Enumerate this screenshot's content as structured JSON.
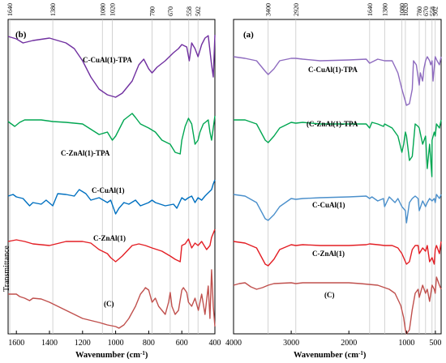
{
  "chart_data": [
    {
      "type": "line",
      "panel": "(b)",
      "xlabel": "Wavenumber (cm-1)",
      "ylabel": "Transmittance",
      "xlim": [
        1650,
        400
      ],
      "x_ticks": [
        1600,
        1400,
        1200,
        1000,
        800,
        600,
        400
      ],
      "x_tick_labels": [
        "1600",
        "1400",
        "1200",
        "1000",
        "800",
        "600",
        "400"
      ],
      "marker_lines": [
        1640,
        1380,
        1080,
        1020,
        780,
        670,
        558,
        502
      ],
      "marker_labels": [
        "1640",
        "1380",
        "1080",
        "1020",
        "780",
        "670",
        "558",
        "502"
      ],
      "grid": false,
      "series": [
        {
          "name": "C-CuAl(1)-TPA",
          "color": "#7030a0",
          "baseline": 45,
          "x": [
            1650,
            1600,
            1560,
            1500,
            1400,
            1300,
            1250,
            1200,
            1150,
            1100,
            1050,
            1000,
            960,
            900,
            860,
            830,
            800,
            780,
            750,
            700,
            650,
            620,
            600,
            570,
            555,
            540,
            520,
            502,
            480,
            460,
            440,
            420,
            410,
            400
          ],
          "y": [
            0,
            3,
            8,
            5,
            2,
            8,
            15,
            30,
            50,
            65,
            72,
            75,
            70,
            55,
            35,
            28,
            40,
            45,
            38,
            30,
            20,
            15,
            10,
            13,
            30,
            8,
            15,
            25,
            10,
            2,
            -1,
            35,
            50,
            -2
          ]
        },
        {
          "name": "C-ZnAl(1)-TPA",
          "color": "#00a651",
          "baseline": 148,
          "x": [
            1650,
            1610,
            1580,
            1550,
            1450,
            1380,
            1300,
            1200,
            1100,
            1050,
            1020,
            1000,
            950,
            900,
            880,
            850,
            800,
            760,
            720,
            670,
            640,
            610,
            600,
            580,
            560,
            540,
            520,
            502,
            490,
            470,
            440,
            430,
            420,
            410,
            400
          ],
          "y": [
            2,
            8,
            3,
            0,
            0,
            2,
            3,
            5,
            18,
            15,
            25,
            20,
            0,
            -8,
            -3,
            5,
            10,
            15,
            25,
            30,
            40,
            42,
            25,
            8,
            -2,
            5,
            30,
            25,
            15,
            5,
            0,
            15,
            25,
            10,
            -5
          ]
        },
        {
          "name": "C-CuAl(1)",
          "color": "#0070c0",
          "baseline": 242,
          "x": [
            1650,
            1620,
            1600,
            1560,
            1520,
            1500,
            1450,
            1420,
            1380,
            1350,
            1300,
            1250,
            1220,
            1180,
            1150,
            1100,
            1050,
            1030,
            1000,
            980,
            950,
            920,
            880,
            850,
            800,
            780,
            760,
            700,
            650,
            630,
            600,
            580,
            560,
            540,
            520,
            502,
            480,
            460,
            440,
            420,
            410,
            400
          ],
          "y": [
            0,
            -2,
            1,
            3,
            12,
            8,
            10,
            5,
            12,
            -3,
            -2,
            0,
            -8,
            -3,
            5,
            2,
            8,
            5,
            22,
            15,
            8,
            10,
            5,
            12,
            8,
            5,
            8,
            12,
            10,
            15,
            2,
            5,
            2,
            0,
            8,
            2,
            5,
            0,
            -4,
            -8,
            -15,
            -20
          ]
        },
        {
          "name": "C-ZnAl(1)",
          "color": "#e31e24",
          "baseline": 298,
          "x": [
            1650,
            1600,
            1550,
            1500,
            1400,
            1300,
            1200,
            1150,
            1100,
            1050,
            1030,
            1000,
            960,
            900,
            860,
            820,
            780,
            720,
            670,
            640,
            610,
            600,
            580,
            560,
            540,
            520,
            502,
            480,
            450,
            430,
            420,
            410,
            400
          ],
          "y": [
            0,
            -2,
            0,
            3,
            5,
            0,
            0,
            2,
            10,
            15,
            20,
            25,
            18,
            5,
            3,
            5,
            8,
            12,
            18,
            22,
            25,
            5,
            3,
            -3,
            8,
            2,
            5,
            0,
            10,
            5,
            -5,
            -10,
            -15
          ]
        },
        {
          "name": "(C)",
          "color": "#c0504d",
          "baseline": 363,
          "x": [
            1650,
            1600,
            1580,
            1550,
            1520,
            1500,
            1450,
            1400,
            1350,
            1300,
            1200,
            1100,
            1050,
            1000,
            980,
            950,
            920,
            880,
            850,
            830,
            820,
            800,
            780,
            760,
            740,
            720,
            700,
            680,
            670,
            660,
            640,
            620,
            600,
            590,
            570,
            560,
            540,
            520,
            500,
            480,
            460,
            440,
            430,
            420,
            410,
            400
          ],
          "y": [
            0,
            0,
            3,
            5,
            8,
            5,
            6,
            10,
            15,
            20,
            30,
            35,
            38,
            40,
            42,
            38,
            30,
            15,
            0,
            -5,
            -8,
            -5,
            10,
            5,
            15,
            20,
            25,
            10,
            -2,
            15,
            25,
            20,
            -5,
            -8,
            -2,
            10,
            15,
            5,
            20,
            0,
            25,
            -10,
            30,
            -30,
            15,
            40
          ]
        }
      ]
    },
    {
      "type": "line",
      "panel": "(a)",
      "xlabel": "Wavenumber (cm-1)",
      "ylabel": "",
      "xlim": [
        4000,
        400
      ],
      "x_ticks": [
        4000,
        3000,
        2000,
        1000,
        500
      ],
      "x_tick_labels": [
        "4000",
        "3000",
        "2000",
        "1000",
        "500"
      ],
      "marker_lines": [
        3400,
        2920,
        1640,
        1380,
        1080,
        1020,
        780,
        670,
        558,
        502
      ],
      "marker_labels": [
        "3400",
        "2920",
        "1640",
        "1380",
        "1080",
        "1020",
        "780",
        "670",
        "558",
        "502"
      ],
      "grid": false,
      "series": [
        {
          "name": "C-CuAl(1)-TPA",
          "color": "#8e6bbf",
          "baseline": 70,
          "x": [
            4000,
            3800,
            3600,
            3450,
            3400,
            3300,
            3200,
            3000,
            2920,
            2800,
            2500,
            2000,
            1700,
            1640,
            1500,
            1380,
            1250,
            1150,
            1080,
            1020,
            1000,
            950,
            900,
            880,
            830,
            780,
            760,
            720,
            700,
            670,
            640,
            600,
            580,
            558,
            540,
            502,
            470,
            430,
            400
          ],
          "y": [
            0,
            2,
            5,
            18,
            22,
            15,
            5,
            2,
            2,
            3,
            5,
            4,
            3,
            8,
            3,
            5,
            5,
            20,
            40,
            55,
            60,
            58,
            40,
            5,
            10,
            35,
            20,
            30,
            15,
            5,
            0,
            5,
            10,
            5,
            30,
            0,
            5,
            10,
            0
          ]
        },
        {
          "name": "(C-ZnAl(1)-TPA",
          "color": "#00a651",
          "baseline": 148,
          "x": [
            4000,
            3800,
            3600,
            3450,
            3400,
            3300,
            3200,
            3000,
            2920,
            2800,
            2500,
            2000,
            1700,
            1640,
            1600,
            1500,
            1400,
            1380,
            1250,
            1150,
            1080,
            1050,
            1020,
            1000,
            950,
            900,
            850,
            800,
            780,
            720,
            670,
            640,
            600,
            560,
            558,
            520,
            502,
            480,
            430,
            400
          ],
          "y": [
            0,
            0,
            5,
            25,
            28,
            20,
            10,
            3,
            4,
            3,
            5,
            5,
            5,
            10,
            3,
            5,
            8,
            5,
            10,
            20,
            40,
            30,
            15,
            20,
            50,
            45,
            5,
            8,
            10,
            30,
            20,
            60,
            30,
            70,
            25,
            15,
            20,
            5,
            10,
            0
          ]
        },
        {
          "name": "C-CuAl(1)",
          "color": "#4a8fcb",
          "baseline": 240,
          "x": [
            4000,
            3800,
            3600,
            3450,
            3400,
            3300,
            3200,
            3000,
            2920,
            2800,
            2500,
            2000,
            1700,
            1640,
            1600,
            1500,
            1400,
            1380,
            1300,
            1200,
            1150,
            1080,
            1020,
            1000,
            950,
            900,
            850,
            800,
            780,
            720,
            670,
            640,
            600,
            558,
            520,
            502,
            480,
            430,
            400
          ],
          "y": [
            0,
            2,
            10,
            30,
            32,
            25,
            15,
            5,
            6,
            5,
            4,
            3,
            2,
            5,
            3,
            8,
            5,
            15,
            3,
            10,
            5,
            15,
            20,
            35,
            10,
            5,
            2,
            5,
            20,
            8,
            15,
            10,
            5,
            8,
            5,
            10,
            0,
            5,
            0
          ]
        },
        {
          "name": "C-ZnAl(1)",
          "color": "#e31e24",
          "baseline": 298,
          "x": [
            4000,
            3800,
            3600,
            3450,
            3400,
            3300,
            3200,
            3000,
            2920,
            2800,
            2500,
            2000,
            1700,
            1640,
            1500,
            1380,
            1250,
            1150,
            1080,
            1050,
            1020,
            1000,
            950,
            900,
            850,
            800,
            780,
            720,
            670,
            640,
            600,
            558,
            520,
            502,
            480,
            430,
            400
          ],
          "y": [
            0,
            2,
            8,
            28,
            30,
            22,
            10,
            4,
            5,
            4,
            5,
            5,
            4,
            3,
            4,
            5,
            5,
            8,
            15,
            20,
            25,
            28,
            25,
            10,
            5,
            5,
            15,
            8,
            12,
            5,
            25,
            20,
            28,
            10,
            5,
            15,
            0
          ]
        },
        {
          "name": "(C)",
          "color": "#c0504d",
          "baseline": 352,
          "x": [
            4000,
            3900,
            3800,
            3700,
            3600,
            3500,
            3400,
            3300,
            3000,
            2920,
            2800,
            2500,
            2000,
            1800,
            1500,
            1300,
            1200,
            1100,
            1050,
            1020,
            1000,
            950,
            900,
            850,
            800,
            780,
            720,
            670,
            640,
            600,
            558,
            520,
            502,
            480,
            430,
            400
          ],
          "y": [
            0,
            -2,
            -3,
            2,
            5,
            3,
            0,
            -2,
            -3,
            -2,
            -3,
            -3,
            -3,
            -2,
            0,
            5,
            10,
            25,
            40,
            55,
            60,
            55,
            30,
            10,
            5,
            15,
            0,
            10,
            5,
            20,
            0,
            5,
            10,
            -10,
            0,
            5
          ]
        }
      ]
    }
  ],
  "legend_labels_b": [
    "C-CuAl(1)-TPA",
    "C-ZnAl(1)-TPA",
    "C-CuAl(1)",
    "C-ZnAl(1)",
    "(C)"
  ],
  "legend_labels_a": [
    "C-CuAl(1)-TPA",
    "(C-ZnAl(1)-TPA",
    "C-CuAl(1)",
    "C-ZnAl(1)",
    "(C)"
  ],
  "ylabel": "Transmittance",
  "panel_b_tag": "(b)",
  "panel_a_tag": "(a)",
  "xlabel_text": "Wavenumber (cm",
  "xlabel_sup": "-1",
  "xlabel_close": ")"
}
